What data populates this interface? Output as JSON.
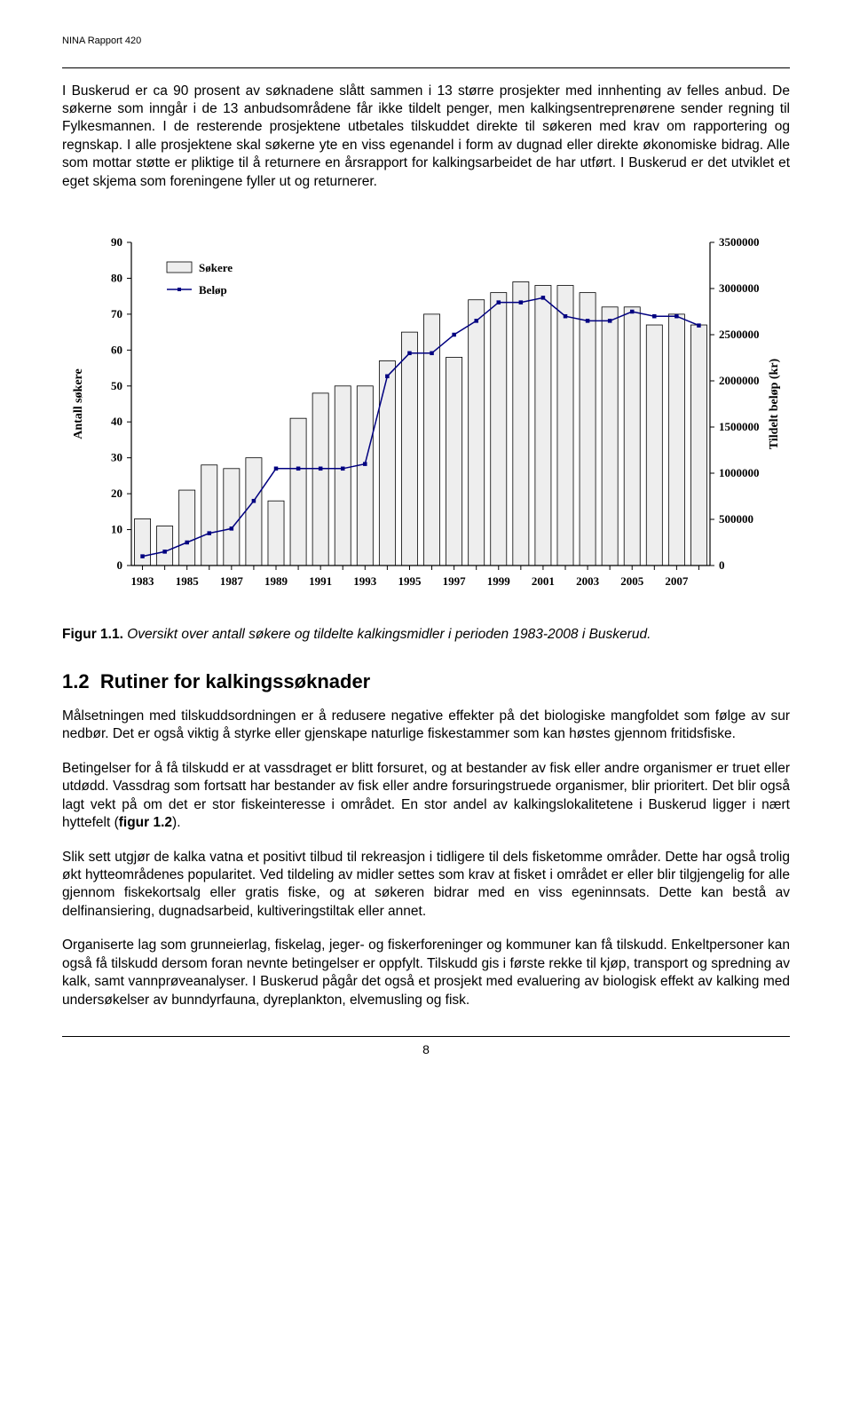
{
  "header": {
    "report_label": "NINA Rapport 420"
  },
  "paragraphs": {
    "p1": "I Buskerud er ca 90 prosent av søknadene slått sammen i 13 større prosjekter med innhenting av felles anbud. De søkerne som inngår i de 13 anbudsområdene får ikke tildelt penger, men kalkingsentreprenørene sender regning til Fylkesmannen. I de resterende prosjektene utbetales tilskuddet direkte til søkeren med krav om rapportering og regnskap. I alle prosjektene skal søkerne yte en viss egenandel i form av dugnad eller direkte økonomiske bidrag. Alle som mottar støtte er pliktige til å returnere en årsrapport for kalkingsarbeidet de har utført. I Buskerud er det utviklet et eget skjema som foreningene fyller ut og returnerer.",
    "caption_label": "Figur 1.1.",
    "caption_text": " Oversikt over antall søkere og tildelte kalkingsmidler i perioden 1983-2008 i Buskerud.",
    "section_no": "1.2",
    "section_title": "Rutiner for kalkingssøknader",
    "p2": "Målsetningen med tilskuddsordningen er å redusere negative effekter på det biologiske mangfoldet som følge av sur nedbør. Det er også viktig å styrke eller gjenskape naturlige fiskestammer som kan høstes gjennom fritidsfiske.",
    "p3a": "Betingelser for å få tilskudd er at vassdraget er blitt forsuret, og at bestander av fisk eller andre organismer er truet eller utdødd. Vassdrag som fortsatt har bestander av fisk eller andre forsuringstruede organismer, blir prioritert. Det blir også lagt vekt på om det er stor fiskeinteresse i området. En stor andel av kalkingslokalitetene i Buskerud ligger i nært hyttefelt (",
    "p3b": "figur 1.2",
    "p3c": ").",
    "p4": "Slik sett utgjør de kalka vatna et positivt tilbud til rekreasjon i tidligere til dels fisketomme områder. Dette har også trolig økt hytteområdenes popularitet. Ved tildeling av midler settes som krav at fisket i området er eller blir tilgjengelig for alle gjennom fiskekortsalg eller gratis fiske, og at søkeren bidrar med en viss egeninnsats. Dette kan bestå av delfinansiering, dugnadsarbeid, kultiveringstiltak eller annet.",
    "p5": "Organiserte lag som grunneierlag, fiskelag, jeger- og fiskerforeninger og kommuner kan få tilskudd. Enkeltpersoner kan også få tilskudd dersom foran nevnte betingelser er oppfylt. Tilskudd gis i første rekke til kjøp, transport og spredning av kalk, samt vannprøveanalyser. I Buskerud pågår det også et prosjekt med evaluering av biologisk effekt av kalking med undersøkelser av bunndyrfauna, dyreplankton, elvemusling og fisk."
  },
  "chart": {
    "type": "combo-bar-line",
    "legend": {
      "bars": "Søkere",
      "line": "Beløp"
    },
    "x_labels": [
      "1983",
      "1985",
      "1987",
      "1989",
      "1991",
      "1993",
      "1995",
      "1997",
      "1999",
      "2001",
      "2003",
      "2005",
      "2007"
    ],
    "years": [
      1983,
      1984,
      1985,
      1986,
      1987,
      1988,
      1989,
      1990,
      1991,
      1992,
      1993,
      1994,
      1995,
      1996,
      1997,
      1998,
      1999,
      2000,
      2001,
      2002,
      2003,
      2004,
      2005,
      2006,
      2007,
      2008
    ],
    "sokere": [
      13,
      11,
      21,
      28,
      27,
      30,
      18,
      41,
      48,
      50,
      50,
      57,
      65,
      70,
      58,
      74,
      76,
      79,
      78,
      78,
      76,
      72,
      72,
      67,
      70,
      67
    ],
    "belop": [
      100000,
      150000,
      250000,
      350000,
      400000,
      700000,
      1050000,
      1050000,
      1050000,
      1050000,
      1100000,
      2050000,
      2300000,
      2300000,
      2500000,
      2650000,
      2850000,
      2850000,
      2900000,
      2700000,
      2650000,
      2650000,
      2750000,
      2700000,
      2700000,
      2600000
    ],
    "left_axis": {
      "label": "Antall søkere",
      "min": 0,
      "max": 90,
      "step": 10,
      "ticks": [
        0,
        10,
        20,
        30,
        40,
        50,
        60,
        70,
        80,
        90
      ]
    },
    "right_axis": {
      "label": "Tildelt beløp (kr)",
      "min": 0,
      "max": 3500000,
      "step": 500000,
      "ticks": [
        0,
        500000,
        1000000,
        1500000,
        2000000,
        2500000,
        3000000,
        3500000
      ]
    },
    "colors": {
      "bar_fill": "#eeeeee",
      "bar_stroke": "#000000",
      "line_stroke": "#000080",
      "marker_fill": "#000080",
      "background": "#ffffff",
      "axis": "#000000",
      "tick_mark": "#000000",
      "text": "#000000"
    },
    "font": {
      "axis_label_size": 14,
      "tick_size": 13,
      "legend_size": 13,
      "axis_label_weight": "bold"
    },
    "layout": {
      "bar_width_ratio": 0.72,
      "line_width": 1.5,
      "marker_size": 4
    }
  },
  "footer": {
    "page_number": "8"
  }
}
